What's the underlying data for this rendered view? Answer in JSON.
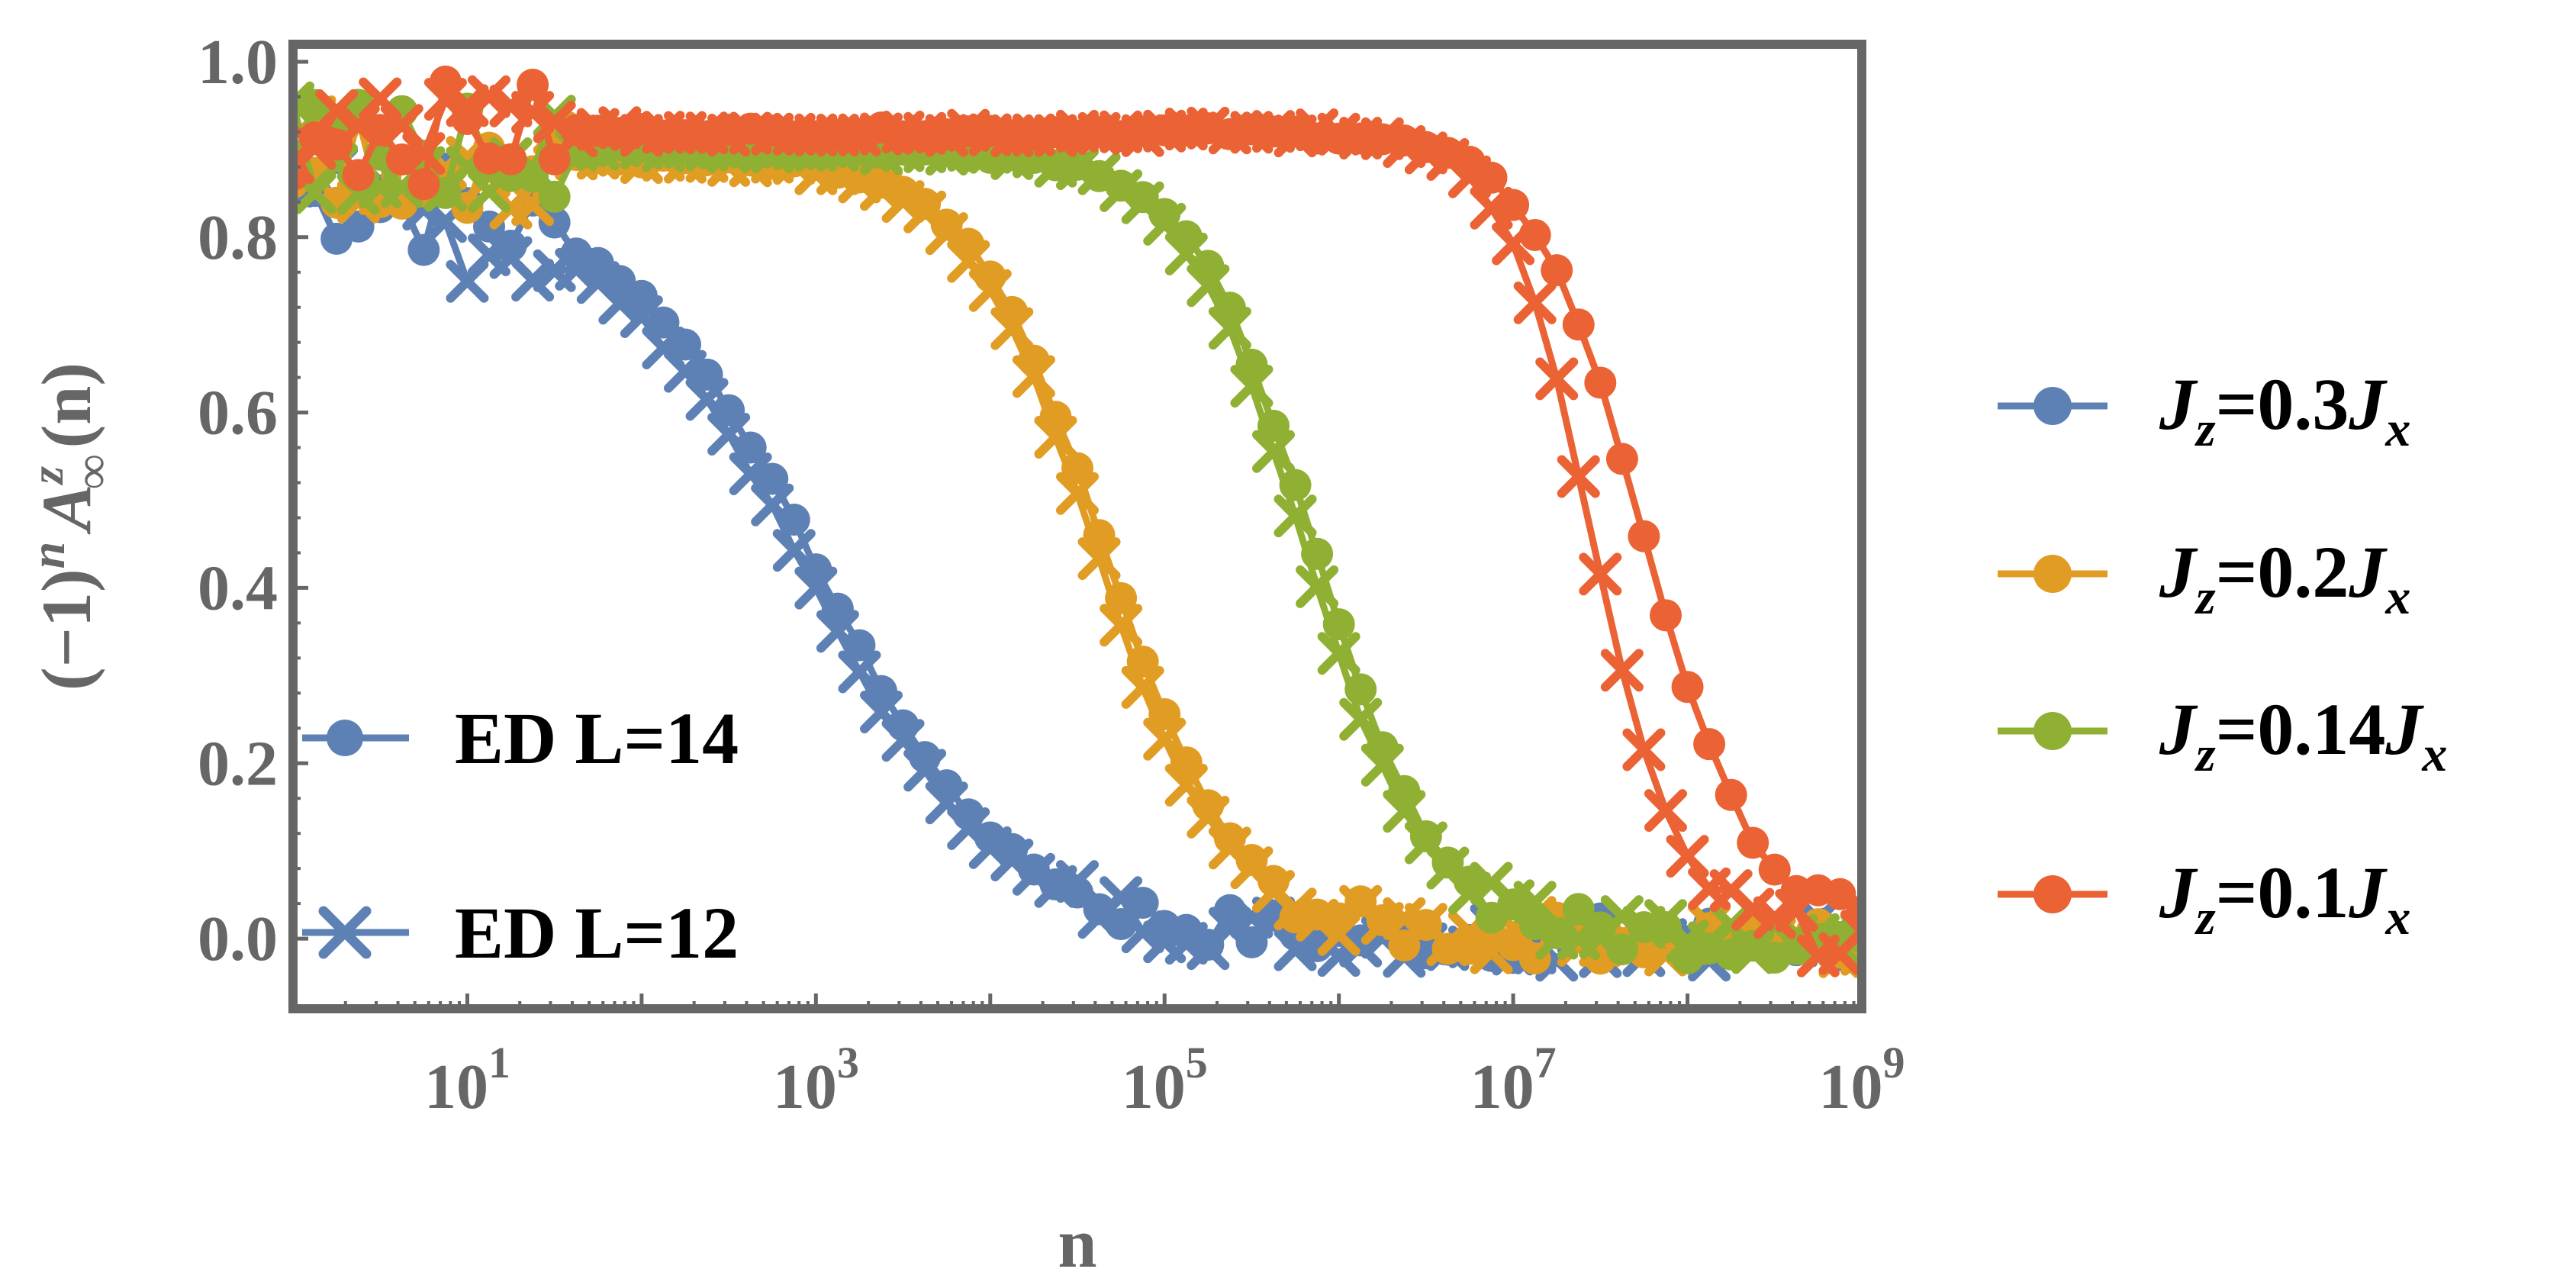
{
  "chart_data": {
    "type": "scatter",
    "xlabel": "n",
    "ylabel_parts": {
      "open": "(−1)",
      "sup_n": "n",
      "A": "A",
      "sup_z": "z",
      "sub_inf": "∞",
      "close": "(n)"
    },
    "x_scale": "log10",
    "xlim": [
      1,
      1000000000
    ],
    "ylim": [
      -0.08,
      1.02
    ],
    "x_ticks": [
      {
        "value": 10,
        "base": "10",
        "exp": "1"
      },
      {
        "value": 1000,
        "base": "10",
        "exp": "3"
      },
      {
        "value": 100000,
        "base": "10",
        "exp": "5"
      },
      {
        "value": 10000000,
        "base": "10",
        "exp": "7"
      },
      {
        "value": 1000000000,
        "base": "10",
        "exp": "9"
      }
    ],
    "y_ticks": [
      {
        "value": 0.0,
        "label": "0.0"
      },
      {
        "value": 0.2,
        "label": "0.2"
      },
      {
        "value": 0.4,
        "label": "0.4"
      },
      {
        "value": 0.6,
        "label": "0.6"
      },
      {
        "value": 0.8,
        "label": "0.8"
      },
      {
        "value": 1.0,
        "label": "1.0"
      }
    ],
    "grid": false,
    "legend_marker_style": [
      {
        "marker": "circle",
        "label": "ED L=14"
      },
      {
        "marker": "cross",
        "label": "ED L=12"
      }
    ],
    "legend_series": [
      {
        "J": "J",
        "sub": "z",
        "eq": "=0.3",
        "J2": "J",
        "sub2": "x",
        "color": "#5E81B5"
      },
      {
        "J": "J",
        "sub": "z",
        "eq": "=0.2",
        "J2": "J",
        "sub2": "x",
        "color": "#E19C24"
      },
      {
        "J": "J",
        "sub": "z",
        "eq": "=0.14",
        "J2": "J",
        "sub2": "x",
        "color": "#8FB032"
      },
      {
        "J": "J",
        "sub": "z",
        "eq": "=0.1",
        "J2": "J",
        "sub2": "x",
        "color": "#EB6235"
      }
    ],
    "series": [
      {
        "color": "#5E81B5",
        "marker": "circle",
        "plateau": 0.85,
        "mid_log10n": 3.0,
        "width": 0.55
      },
      {
        "color": "#5E81B5",
        "marker": "cross",
        "plateau": 0.83,
        "mid_log10n": 2.95,
        "width": 0.55
      },
      {
        "color": "#E19C24",
        "marker": "circle",
        "plateau": 0.89,
        "mid_log10n": 4.65,
        "width": 0.38
      },
      {
        "color": "#E19C24",
        "marker": "cross",
        "plateau": 0.89,
        "mid_log10n": 4.6,
        "width": 0.38
      },
      {
        "color": "#8FB032",
        "marker": "circle",
        "plateau": 0.9,
        "mid_log10n": 5.85,
        "width": 0.35
      },
      {
        "color": "#8FB032",
        "marker": "cross",
        "plateau": 0.9,
        "mid_log10n": 5.8,
        "width": 0.35
      },
      {
        "color": "#EB6235",
        "marker": "circle",
        "plateau": 0.92,
        "mid_log10n": 7.75,
        "width": 0.32
      },
      {
        "color": "#EB6235",
        "marker": "cross",
        "plateau": 0.92,
        "mid_log10n": 7.45,
        "width": 0.25
      }
    ]
  }
}
